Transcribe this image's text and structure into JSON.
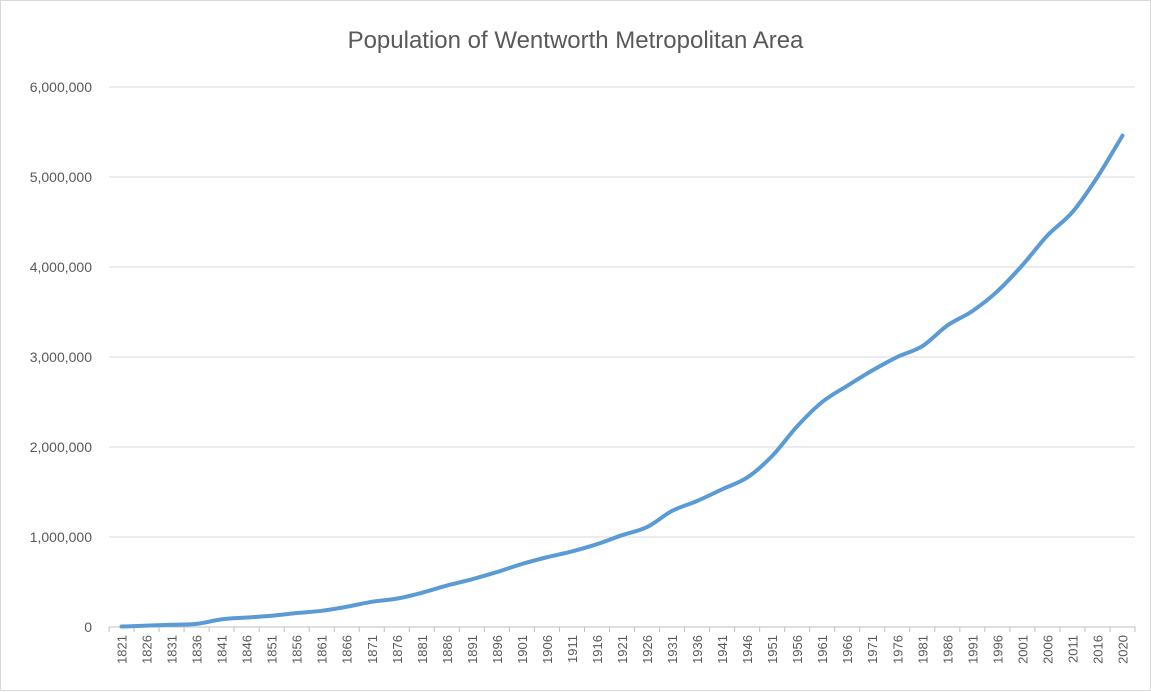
{
  "chart_data": {
    "type": "line",
    "title": "Population of Wentworth Metropolitan Area",
    "xlabel": "",
    "ylabel": "",
    "ylim": [
      0,
      6000000
    ],
    "y_ticks": [
      "0",
      "1,000,000",
      "2,000,000",
      "3,000,000",
      "4,000,000",
      "5,000,000",
      "6,000,000"
    ],
    "grid": true,
    "legend": "none",
    "categories": [
      "1821",
      "1826",
      "1831",
      "1836",
      "1841",
      "1846",
      "1851",
      "1856",
      "1861",
      "1866",
      "1871",
      "1876",
      "1881",
      "1886",
      "1891",
      "1896",
      "1901",
      "1906",
      "1911",
      "1916",
      "1921",
      "1926",
      "1931",
      "1936",
      "1941",
      "1946",
      "1951",
      "1956",
      "1961",
      "1966",
      "1971",
      "1976",
      "1981",
      "1986",
      "1991",
      "1996",
      "2001",
      "2006",
      "2011",
      "2016",
      "2020"
    ],
    "series": [
      {
        "color": "#5b9bd5",
        "values": [
          5000,
          15000,
          25000,
          35000,
          85000,
          105000,
          125000,
          155000,
          180000,
          225000,
          280000,
          315000,
          380000,
          460000,
          530000,
          610000,
          700000,
          775000,
          840000,
          920000,
          1020000,
          1110000,
          1290000,
          1400000,
          1530000,
          1660000,
          1900000,
          2230000,
          2500000,
          2680000,
          2850000,
          3000000,
          3120000,
          3350000,
          3510000,
          3730000,
          4020000,
          4350000,
          4610000,
          5000000,
          5460000
        ]
      }
    ]
  }
}
